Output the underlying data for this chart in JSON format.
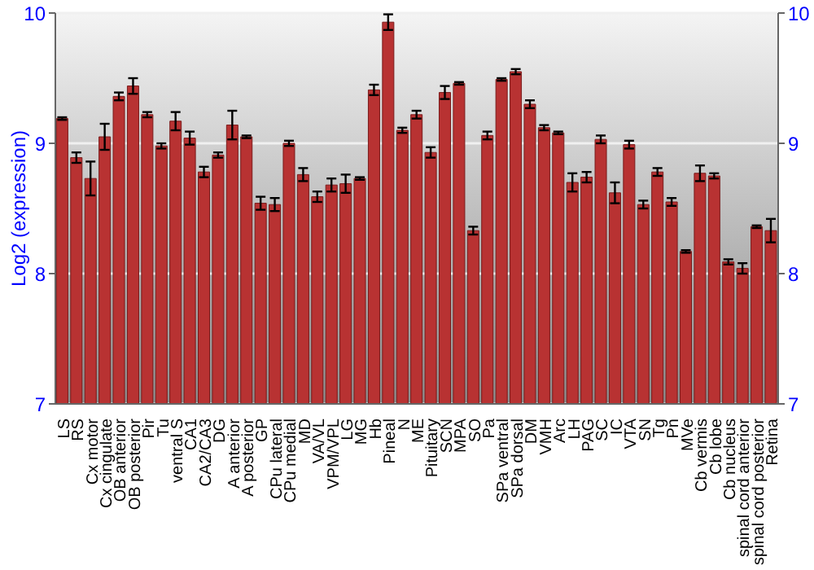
{
  "chart_data": {
    "type": "bar",
    "ylabel": "Log2 (expression)",
    "categories": [
      "LS",
      "RS",
      "Cx motor",
      "Cx cingulate",
      "OB anterior",
      "OB posterior",
      "Pir",
      "Tu",
      "ventral S",
      "CA1",
      "CA2/CA3",
      "DG",
      "A anterior",
      "A posterior",
      "GP",
      "CPu lateral",
      "CPu medial",
      "MD",
      "VA/VL",
      "VPM/VPL",
      "LG",
      "MG",
      "Hb",
      "Pineal",
      "N",
      "ME",
      "Pituitary",
      "SCN",
      "MPA",
      "SO",
      "Pa",
      "SPa ventral",
      "SPa dorsal",
      "DM",
      "VMH",
      "Arc",
      "LH",
      "PAG",
      "SC",
      "IC",
      "VTA",
      "SN",
      "Tg",
      "Pn",
      "MVe",
      "Cb vermis",
      "Cb lobe",
      "Cb nucleus",
      "spinal cord anterior",
      "spinal cord posterior",
      "Retina"
    ],
    "series": [
      {
        "color": "#b83232",
        "values": [
          9.19,
          8.89,
          8.73,
          9.05,
          9.36,
          9.44,
          9.22,
          8.98,
          9.17,
          9.04,
          8.78,
          8.91,
          9.14,
          9.05,
          8.54,
          8.53,
          9.0,
          8.76,
          8.59,
          8.68,
          8.69,
          8.73,
          9.41,
          9.93,
          9.1,
          9.22,
          8.93,
          9.39,
          9.46,
          8.33,
          9.06,
          9.49,
          9.55,
          9.3,
          9.12,
          9.08,
          8.7,
          8.74,
          9.03,
          8.62,
          8.99,
          8.53,
          8.78,
          8.55,
          8.17,
          8.77,
          8.75,
          8.09,
          8.04,
          8.36,
          8.33
        ],
        "errors": [
          0.01,
          0.04,
          0.13,
          0.1,
          0.03,
          0.06,
          0.02,
          0.02,
          0.07,
          0.05,
          0.04,
          0.02,
          0.11,
          0.01,
          0.05,
          0.05,
          0.02,
          0.05,
          0.04,
          0.05,
          0.07,
          0.01,
          0.04,
          0.06,
          0.02,
          0.03,
          0.04,
          0.05,
          0.01,
          0.03,
          0.03,
          0.01,
          0.02,
          0.03,
          0.02,
          0.01,
          0.07,
          0.04,
          0.03,
          0.08,
          0.03,
          0.03,
          0.03,
          0.03,
          0.01,
          0.06,
          0.02,
          0.02,
          0.04,
          0.01,
          0.09
        ]
      }
    ],
    "ylim": [
      7,
      10
    ],
    "yticks": [
      7,
      8,
      9,
      10
    ],
    "y2lim": [
      7,
      10
    ],
    "y2ticks": [
      7,
      8,
      9,
      10
    ],
    "grid": "y"
  }
}
